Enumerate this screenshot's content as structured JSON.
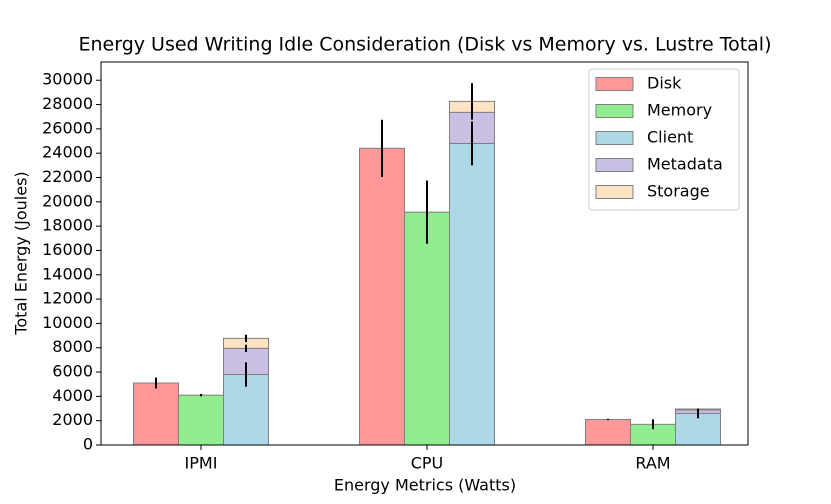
{
  "chart_data": {
    "type": "bar",
    "title": "Energy Used Writing Idle Consideration (Disk vs Memory vs. Lustre Total)",
    "xlabel": "Energy Metrics (Watts)",
    "ylabel": "Total Energy (Joules)",
    "categories": [
      "IPMI",
      "CPU",
      "RAM"
    ],
    "series": [
      {
        "name": "Disk",
        "color": "#ff9999",
        "values": [
          5100,
          24400,
          2100
        ],
        "errors": [
          450,
          2350,
          50
        ]
      },
      {
        "name": "Memory",
        "color": "#90ee90",
        "values": [
          4100,
          19150,
          1700
        ],
        "errors": [
          100,
          2600,
          400
        ]
      },
      {
        "name": "Client",
        "color": "#add8e6",
        "values": [
          5800,
          24800,
          2600
        ],
        "errors": [
          1000,
          1800,
          400
        ]
      },
      {
        "name": "Metadata",
        "color": "#c9c0e3",
        "values": [
          2150,
          2560,
          280
        ],
        "errors": [
          300,
          0,
          0
        ]
      },
      {
        "name": "Storage",
        "color": "#ffe4c4",
        "values": [
          820,
          900,
          80
        ],
        "errors": [
          300,
          1500,
          0
        ]
      }
    ],
    "ylim": [
      0,
      31500
    ],
    "yticks": [
      0,
      2000,
      4000,
      6000,
      8000,
      10000,
      12000,
      14000,
      16000,
      18000,
      20000,
      22000,
      24000,
      26000,
      28000,
      30000
    ],
    "legend": "upper right"
  }
}
